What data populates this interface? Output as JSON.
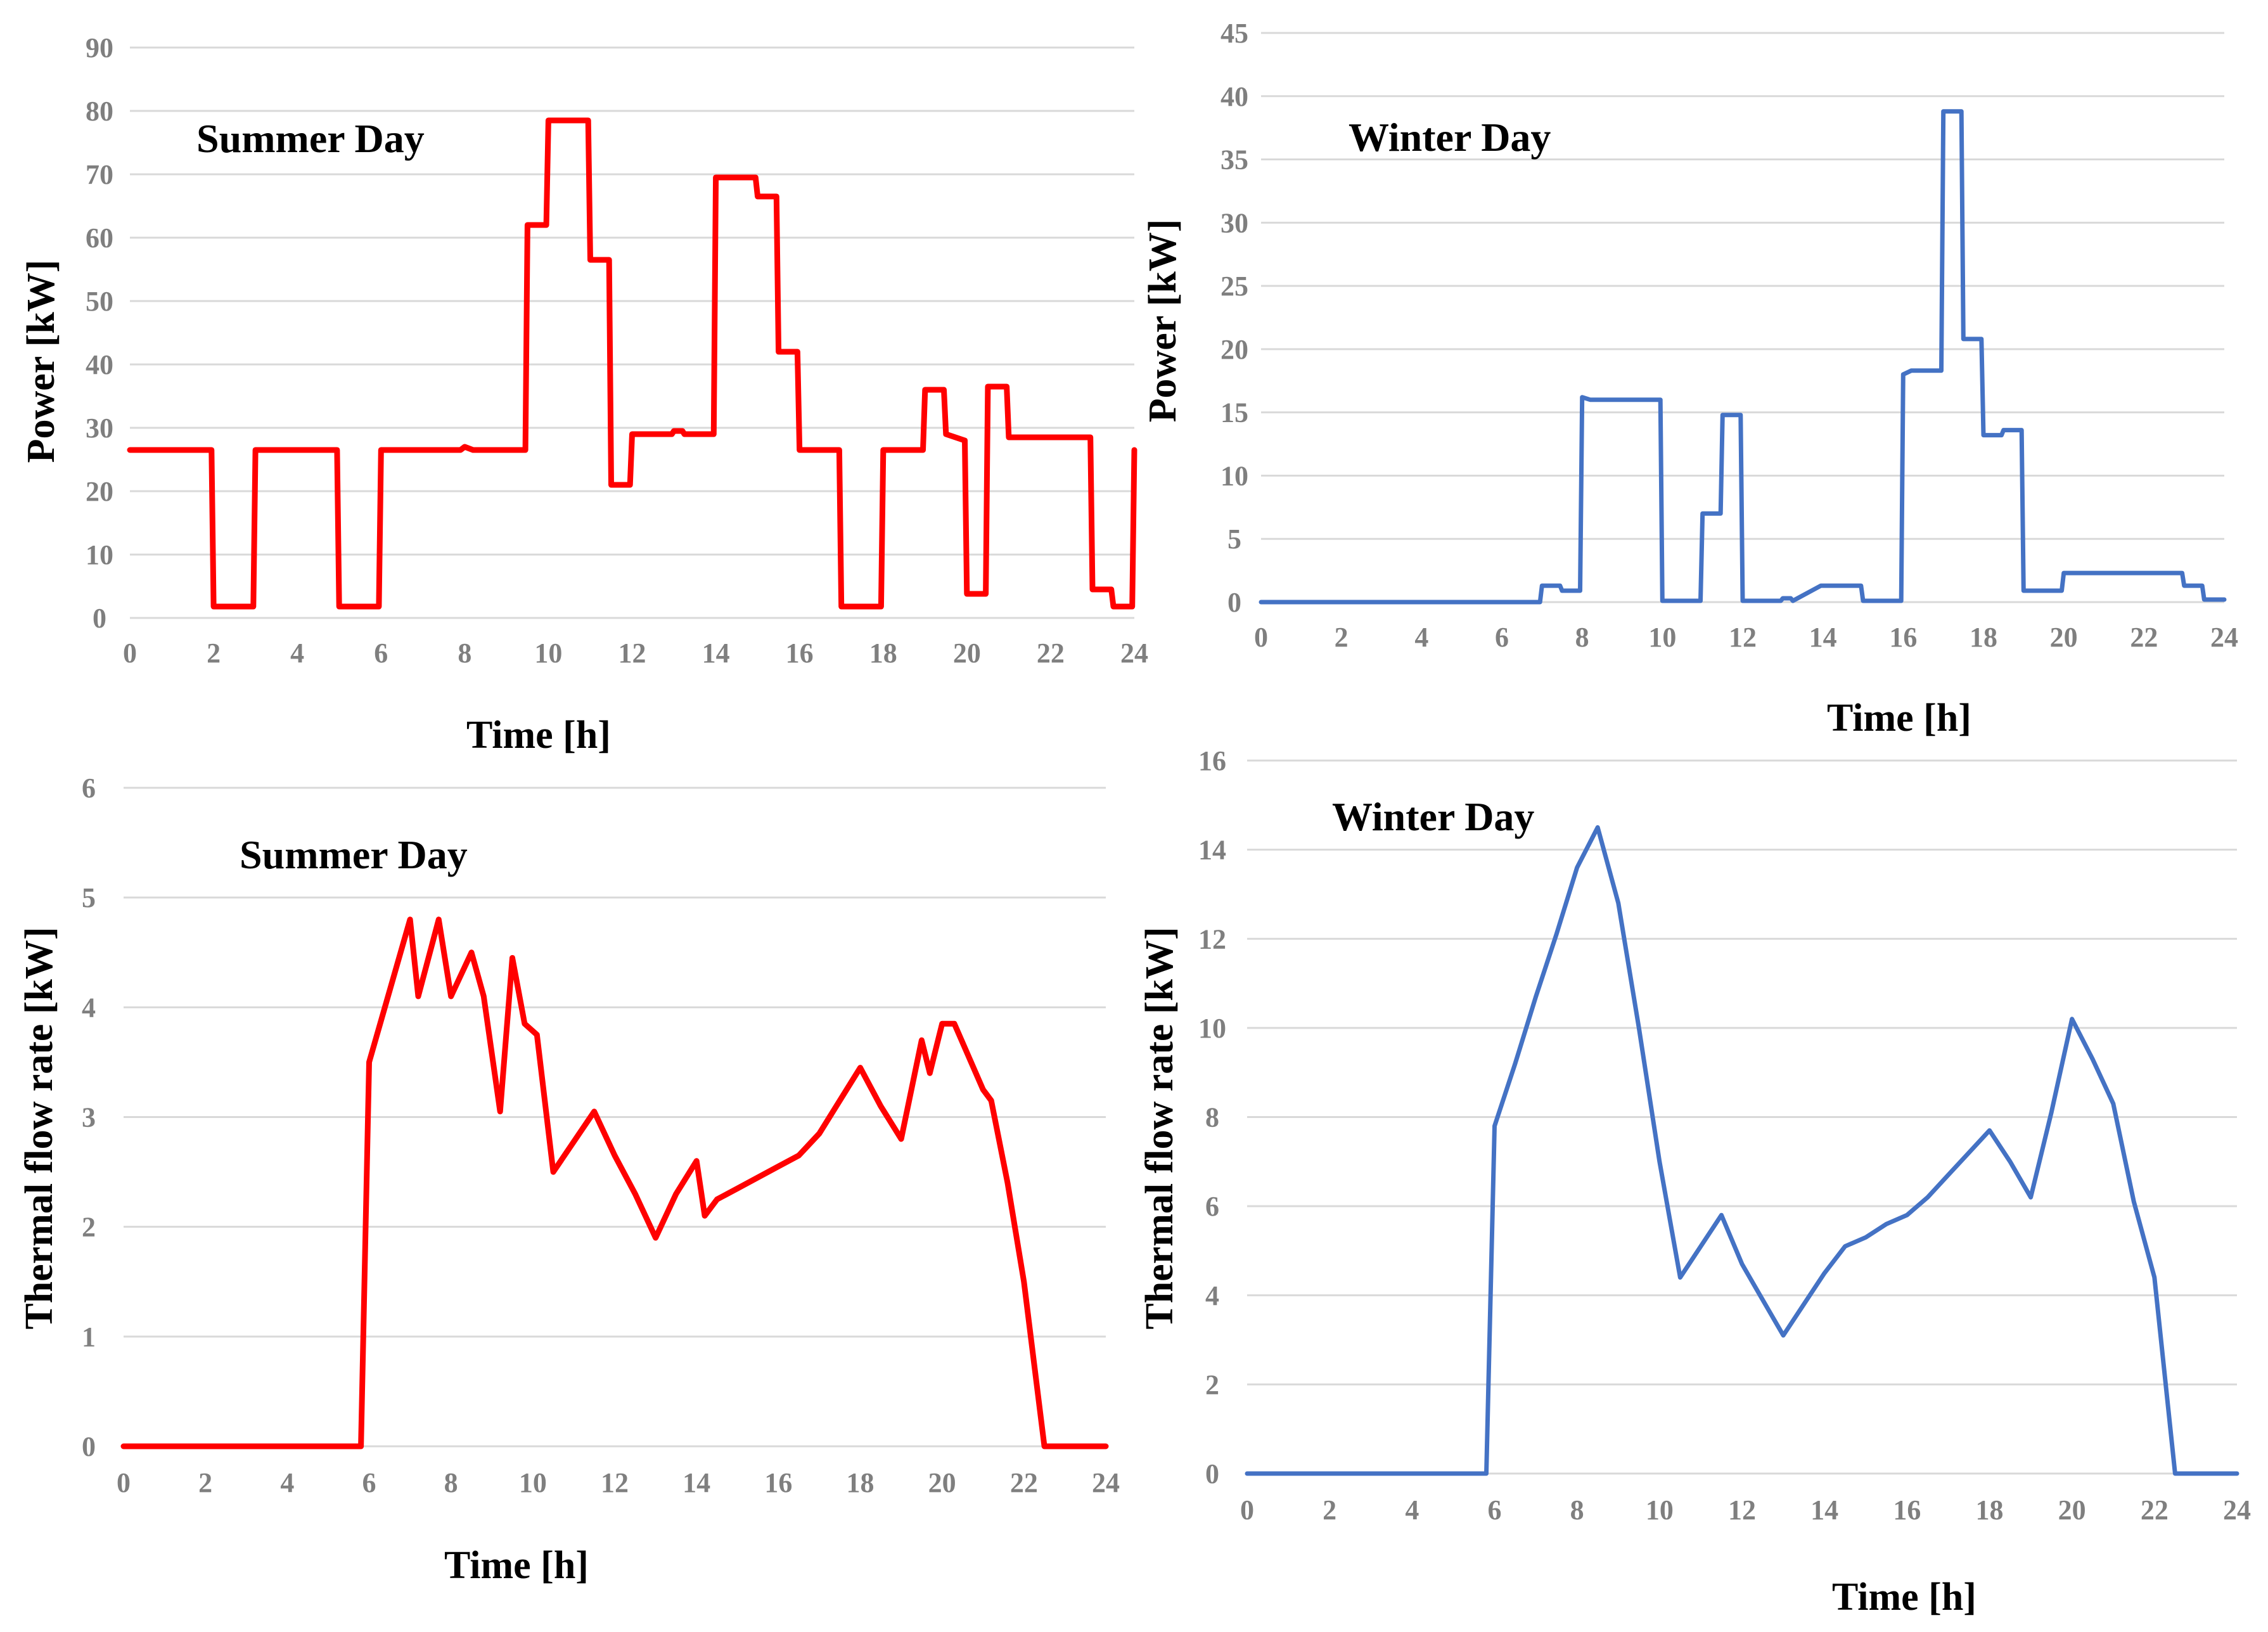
{
  "chart_data": [
    {
      "id": "summer-power",
      "type": "line",
      "annotation": "Summer Day",
      "xlabel": "Time [h]",
      "ylabel": "Power [kW]",
      "xlim": [
        0,
        24
      ],
      "ylim": [
        0,
        90
      ],
      "xticks": [
        0,
        2,
        4,
        6,
        8,
        10,
        12,
        14,
        16,
        18,
        20,
        22,
        24
      ],
      "yticks": [
        0,
        10,
        20,
        30,
        40,
        50,
        60,
        70,
        80,
        90
      ],
      "grid": true,
      "color": "#ff0000",
      "series": [
        {
          "name": "Summer Day power",
          "x": [
            0,
            1.95,
            2.0,
            2.95,
            3.0,
            4.95,
            5.0,
            5.95,
            6.0,
            7.9,
            8.0,
            8.2,
            8.25,
            9.45,
            9.5,
            9.95,
            10.0,
            10.95,
            11.0,
            11.45,
            11.5,
            11.95,
            12.0,
            12.95,
            13.0,
            13.2,
            13.25,
            13.95,
            14.0,
            14.95,
            15.0,
            15.45,
            15.5,
            15.95,
            16.0,
            16.95,
            17.0,
            17.95,
            18.0,
            18.95,
            19.0,
            19.45,
            19.5,
            19.95,
            20.0,
            20.45,
            20.5,
            20.95,
            21.0,
            22.95,
            23.0,
            23.45,
            23.5,
            23.95,
            24.0
          ],
          "y": [
            26.5,
            26.5,
            1.8,
            1.8,
            26.5,
            26.5,
            1.8,
            1.8,
            26.5,
            26.5,
            27.0,
            26.5,
            26.5,
            26.5,
            62.0,
            62.0,
            78.5,
            78.5,
            56.5,
            56.5,
            21.0,
            21.0,
            29.0,
            29.0,
            29.5,
            29.5,
            29.0,
            29.0,
            69.5,
            69.5,
            66.5,
            66.5,
            42.0,
            42.0,
            26.5,
            26.5,
            1.8,
            1.8,
            26.5,
            26.5,
            36.0,
            36.0,
            29.0,
            28.0,
            3.8,
            3.8,
            36.5,
            36.5,
            28.5,
            28.5,
            4.5,
            4.5,
            1.8,
            1.8,
            26.5
          ]
        }
      ]
    },
    {
      "id": "winter-power",
      "type": "line",
      "annotation": "Winter Day",
      "xlabel": "Time [h]",
      "ylabel": "Power [kW]",
      "xlim": [
        0,
        24
      ],
      "ylim": [
        0,
        45
      ],
      "xticks": [
        0,
        2,
        4,
        6,
        8,
        10,
        12,
        14,
        16,
        18,
        20,
        22,
        24
      ],
      "yticks": [
        0,
        5,
        10,
        15,
        20,
        25,
        30,
        35,
        40,
        45
      ],
      "grid": true,
      "color": "#4472c4",
      "series": [
        {
          "name": "Winter Day power",
          "x": [
            0,
            6.95,
            7.0,
            7.45,
            7.5,
            7.95,
            8.0,
            8.2,
            8.25,
            9.95,
            10.0,
            10.95,
            11.0,
            11.45,
            11.5,
            11.95,
            12.0,
            12.95,
            13.0,
            13.2,
            13.25,
            13.95,
            14.0,
            14.95,
            15.0,
            15.95,
            16.0,
            16.2,
            16.25,
            16.95,
            17.0,
            17.45,
            17.5,
            17.95,
            18.0,
            18.45,
            18.5,
            18.95,
            19.0,
            19.95,
            20.0,
            22.95,
            23.0,
            23.45,
            23.5,
            24.0
          ],
          "y": [
            0,
            0,
            1.3,
            1.3,
            0.9,
            0.9,
            16.2,
            16.0,
            16.0,
            16.0,
            0.1,
            0.1,
            7.0,
            7.0,
            14.8,
            14.8,
            0.1,
            0.1,
            0.3,
            0.3,
            0.1,
            1.3,
            1.3,
            1.3,
            0.1,
            0.1,
            18.0,
            18.3,
            18.3,
            18.3,
            38.8,
            38.8,
            20.8,
            20.8,
            13.2,
            13.2,
            13.6,
            13.6,
            0.9,
            0.9,
            2.3,
            2.3,
            1.3,
            1.3,
            0.2,
            0.2
          ]
        }
      ]
    },
    {
      "id": "summer-thermal",
      "type": "line",
      "annotation": "Summer Day",
      "xlabel": "Time [h]",
      "ylabel": "Thermal flow rate [kW]",
      "xlim": [
        0,
        24
      ],
      "ylim": [
        0,
        6
      ],
      "xticks": [
        0,
        2,
        4,
        6,
        8,
        10,
        12,
        14,
        16,
        18,
        20,
        22,
        24
      ],
      "yticks": [
        0,
        1,
        2,
        3,
        4,
        5,
        6
      ],
      "grid": true,
      "color": "#ff0000",
      "series": [
        {
          "name": "Summer Day thermal flow rate",
          "x": [
            0,
            5.8,
            6.0,
            7.0,
            7.2,
            7.7,
            8.0,
            8.5,
            8.8,
            9.2,
            9.5,
            9.8,
            10.1,
            10.5,
            11.5,
            12.0,
            12.5,
            13.0,
            13.5,
            14.0,
            14.2,
            14.5,
            15.0,
            16.0,
            16.5,
            17.0,
            18.0,
            18.5,
            19.0,
            19.5,
            19.7,
            20.0,
            20.3,
            21.0,
            21.2,
            21.6,
            22.0,
            22.5,
            24.0
          ],
          "y": [
            0,
            0,
            3.5,
            4.8,
            4.1,
            4.8,
            4.1,
            4.5,
            4.1,
            3.05,
            4.45,
            3.85,
            3.75,
            2.5,
            3.05,
            2.65,
            2.3,
            1.9,
            2.3,
            2.6,
            2.1,
            2.25,
            2.35,
            2.55,
            2.65,
            2.85,
            3.45,
            3.1,
            2.8,
            3.7,
            3.4,
            3.85,
            3.85,
            3.25,
            3.15,
            2.4,
            1.5,
            0,
            0
          ]
        }
      ]
    },
    {
      "id": "winter-thermal",
      "type": "line",
      "annotation": "Winter Day",
      "xlabel": "Time [h]",
      "ylabel": "Thermal flow rate [kW]",
      "xlim": [
        0,
        24
      ],
      "ylim": [
        0,
        16
      ],
      "xticks": [
        0,
        2,
        4,
        6,
        8,
        10,
        12,
        14,
        16,
        18,
        20,
        22,
        24
      ],
      "yticks": [
        0,
        2,
        4,
        6,
        8,
        10,
        12,
        14,
        16
      ],
      "grid": true,
      "color": "#4472c4",
      "series": [
        {
          "name": "Winter Day thermal flow rate",
          "x": [
            0,
            5.8,
            6.0,
            6.5,
            7.0,
            7.5,
            8.0,
            8.5,
            9.0,
            9.5,
            10.0,
            10.5,
            11.0,
            11.5,
            12.0,
            12.5,
            13.0,
            13.5,
            14.0,
            14.5,
            15.0,
            15.5,
            16.0,
            16.5,
            17.0,
            17.5,
            18.0,
            18.5,
            19.0,
            19.5,
            20.0,
            20.5,
            21.0,
            21.5,
            22.0,
            22.5,
            24.0
          ],
          "y": [
            0,
            0,
            7.8,
            9.2,
            10.7,
            12.1,
            13.6,
            14.5,
            12.8,
            10.0,
            7.0,
            4.4,
            5.1,
            5.8,
            4.7,
            3.9,
            3.1,
            3.8,
            4.5,
            5.1,
            5.3,
            5.6,
            5.8,
            6.2,
            6.7,
            7.2,
            7.7,
            7.0,
            6.2,
            8.1,
            10.2,
            9.3,
            8.3,
            6.1,
            4.4,
            0,
            0
          ]
        }
      ]
    }
  ]
}
